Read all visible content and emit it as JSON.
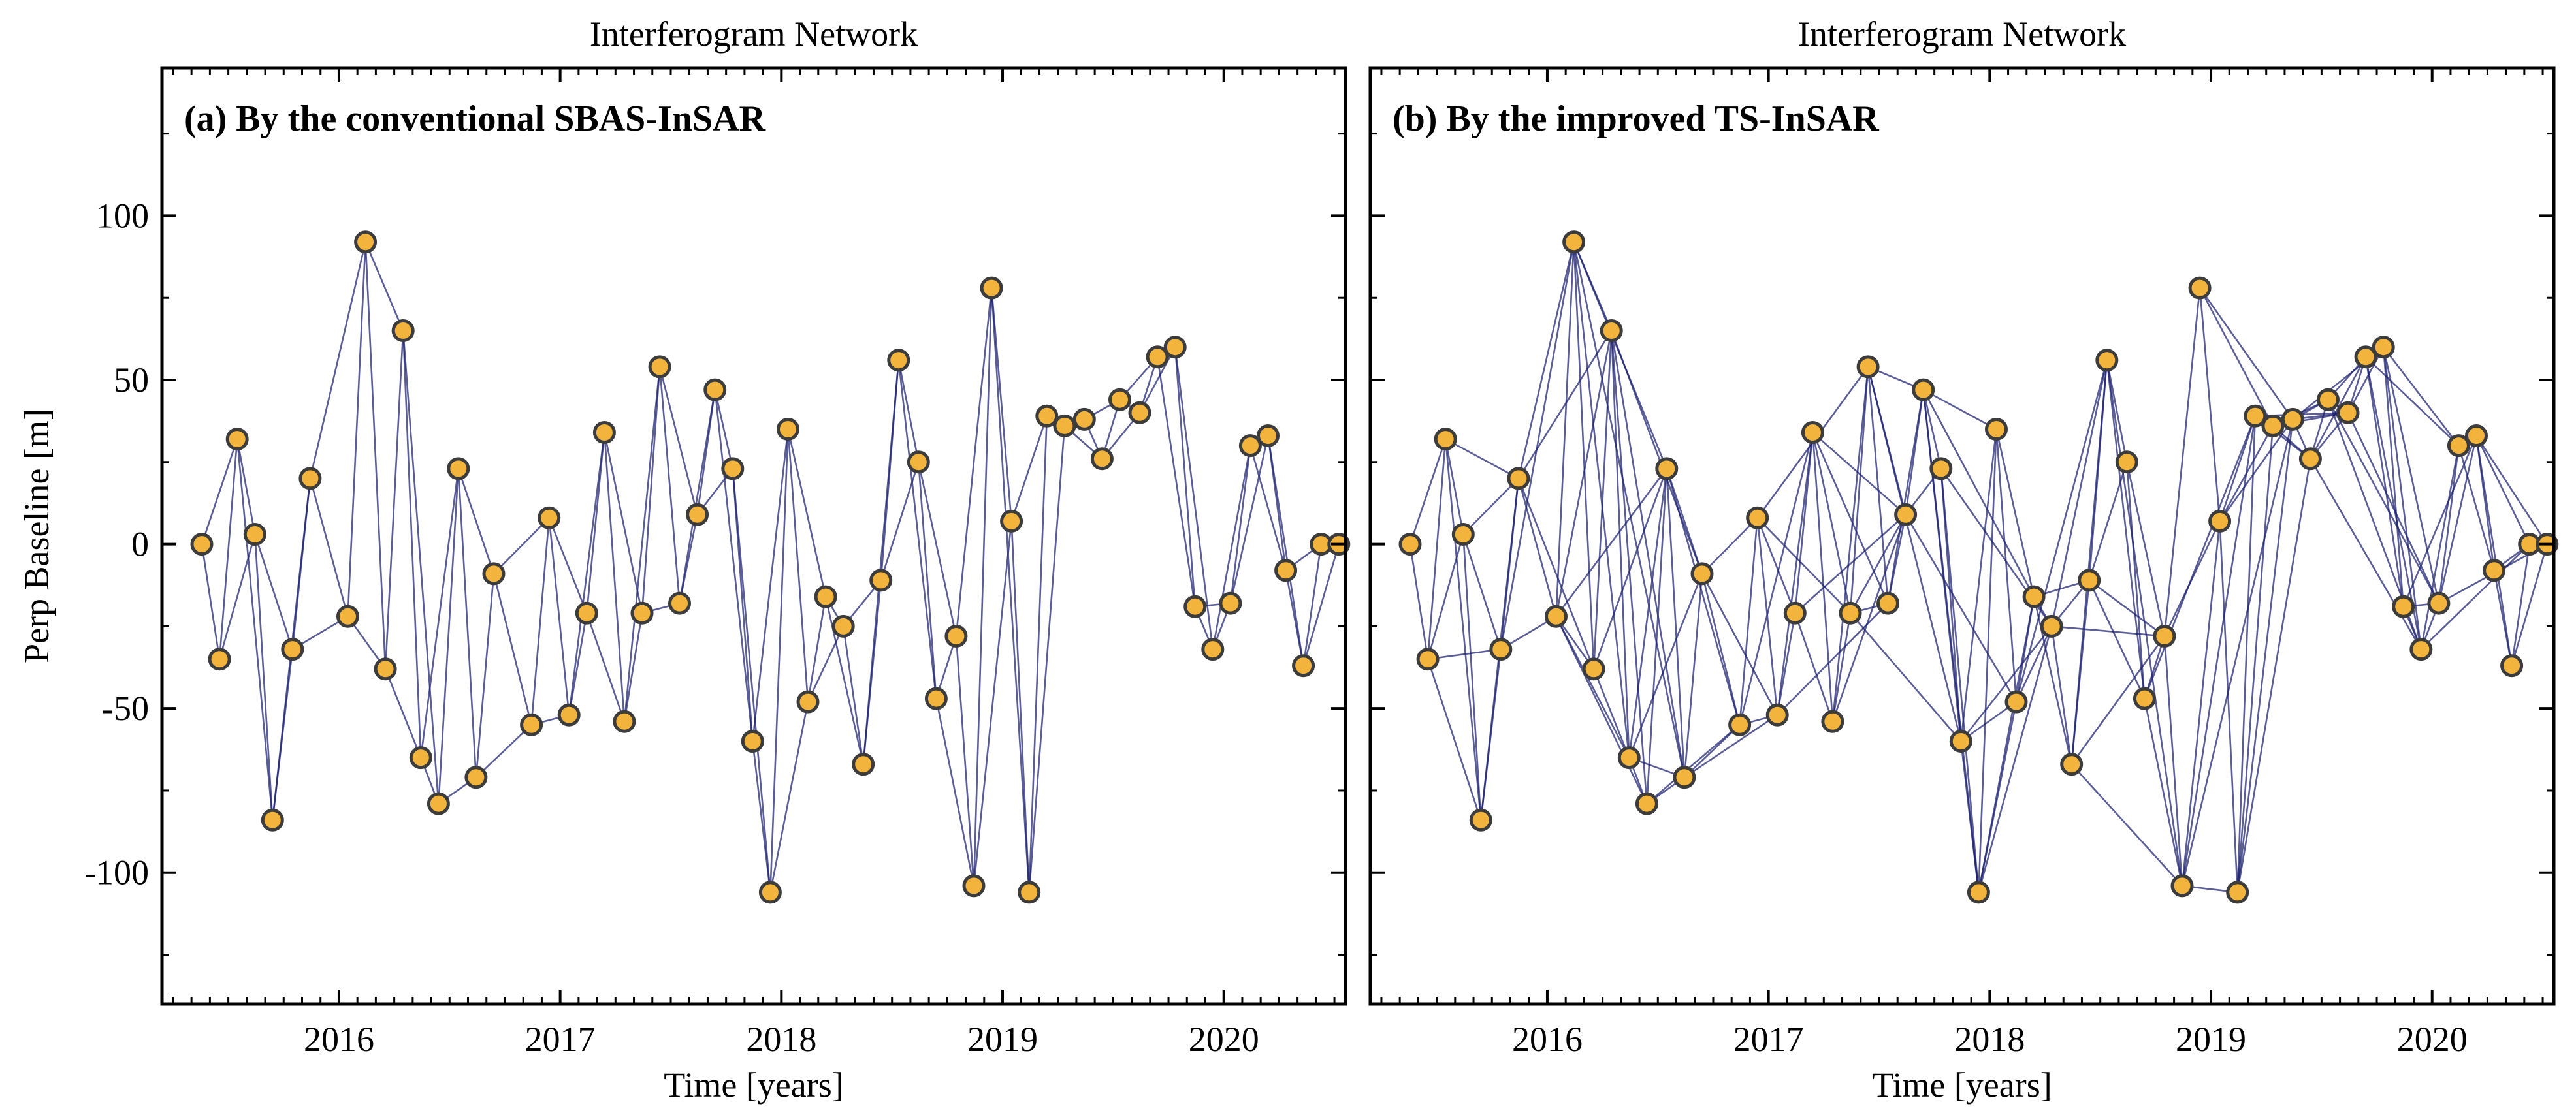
{
  "chart_data": {
    "type": "scatter",
    "description_series": "SAR acquisitions (time vs. perpendicular baseline) connected by interferogram pairs",
    "x_axis": {
      "label": "Time [years]",
      "ticks": [
        2016,
        2017,
        2018,
        2019,
        2020
      ],
      "range": [
        2015.2,
        2020.55
      ]
    },
    "y_axis": {
      "label": "Perp Baseline [m]",
      "ticks": [
        100,
        50,
        0,
        -50,
        -100
      ],
      "tick_labels": [
        "100",
        "50",
        "0",
        "-50",
        "-100"
      ],
      "range": [
        -140,
        145
      ]
    },
    "acquisitions": [
      [
        2015.38,
        0
      ],
      [
        2015.46,
        -35
      ],
      [
        2015.54,
        32
      ],
      [
        2015.62,
        3
      ],
      [
        2015.7,
        -84
      ],
      [
        2015.79,
        -32
      ],
      [
        2015.87,
        20
      ],
      [
        2016.04,
        -22
      ],
      [
        2016.12,
        92
      ],
      [
        2016.21,
        -38
      ],
      [
        2016.29,
        65
      ],
      [
        2016.37,
        -65
      ],
      [
        2016.45,
        -79
      ],
      [
        2016.54,
        23
      ],
      [
        2016.62,
        -71
      ],
      [
        2016.7,
        -9
      ],
      [
        2016.87,
        -55
      ],
      [
        2016.95,
        8
      ],
      [
        2017.04,
        -52
      ],
      [
        2017.12,
        -21
      ],
      [
        2017.2,
        34
      ],
      [
        2017.29,
        -54
      ],
      [
        2017.37,
        -21
      ],
      [
        2017.45,
        54
      ],
      [
        2017.54,
        -18
      ],
      [
        2017.62,
        9
      ],
      [
        2017.7,
        47
      ],
      [
        2017.78,
        23
      ],
      [
        2017.87,
        -60
      ],
      [
        2017.95,
        -106
      ],
      [
        2018.03,
        35
      ],
      [
        2018.12,
        -48
      ],
      [
        2018.2,
        -16
      ],
      [
        2018.28,
        -25
      ],
      [
        2018.37,
        -67
      ],
      [
        2018.45,
        -11
      ],
      [
        2018.53,
        56
      ],
      [
        2018.62,
        25
      ],
      [
        2018.7,
        -47
      ],
      [
        2018.79,
        -28
      ],
      [
        2018.87,
        -104
      ],
      [
        2018.95,
        78
      ],
      [
        2019.04,
        7
      ],
      [
        2019.12,
        -106
      ],
      [
        2019.2,
        39
      ],
      [
        2019.28,
        36
      ],
      [
        2019.37,
        38
      ],
      [
        2019.45,
        26
      ],
      [
        2019.53,
        44
      ],
      [
        2019.62,
        40
      ],
      [
        2019.7,
        57
      ],
      [
        2019.78,
        60
      ],
      [
        2019.87,
        -19
      ],
      [
        2019.95,
        -32
      ],
      [
        2020.03,
        -18
      ],
      [
        2020.12,
        30
      ],
      [
        2020.2,
        33
      ],
      [
        2020.28,
        -8
      ],
      [
        2020.36,
        -37
      ],
      [
        2020.44,
        0
      ],
      [
        2020.52,
        0
      ]
    ],
    "panels": [
      {
        "title": "Interferogram Network",
        "label": "(a) By the conventional SBAS-InSAR",
        "network": "sequential"
      },
      {
        "title": "Interferogram Network",
        "label": "(b) By the improved TS-InSAR",
        "network": "dense"
      }
    ]
  }
}
